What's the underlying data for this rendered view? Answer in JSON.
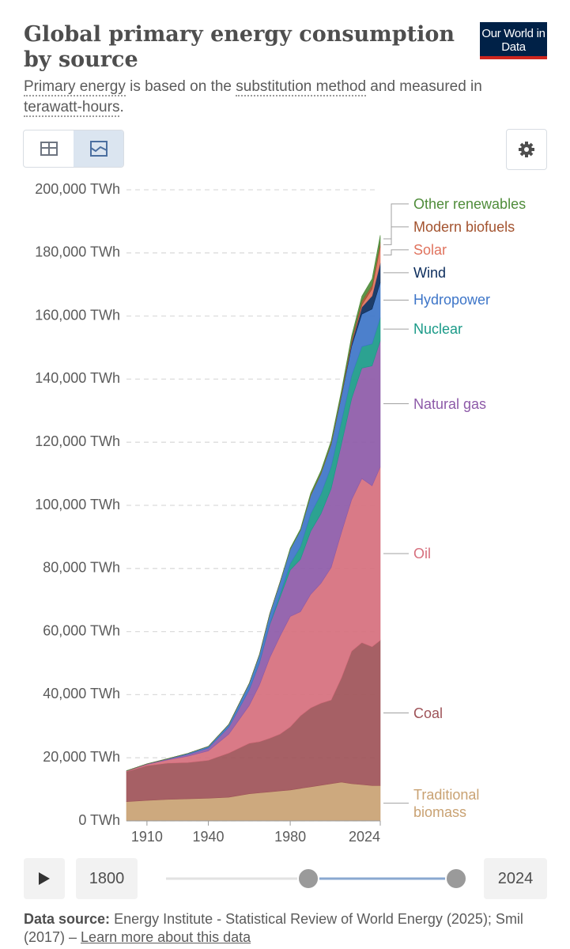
{
  "header": {
    "title": "Global primary energy consumption by source",
    "subtitle": [
      "Primary energy",
      " is based on the ",
      "substitution method",
      " and measured in ",
      "terawatt-hours",
      "."
    ],
    "logo": "Our World in Data"
  },
  "chart_data": {
    "type": "area",
    "stacked": true,
    "x": [
      1900,
      1910,
      1920,
      1930,
      1940,
      1950,
      1960,
      1965,
      1970,
      1975,
      1980,
      1985,
      1990,
      1995,
      2000,
      2005,
      2010,
      2015,
      2020,
      2024
    ],
    "xlim": [
      1900,
      2024
    ],
    "xticks": [
      1910,
      1940,
      1980,
      2024
    ],
    "ylim": [
      0,
      200000
    ],
    "yticks": [
      {
        "value": 0,
        "label": "0 TWh"
      },
      {
        "value": 20000,
        "label": "20,000 TWh"
      },
      {
        "value": 40000,
        "label": "40,000 TWh"
      },
      {
        "value": 60000,
        "label": "60,000 TWh"
      },
      {
        "value": 80000,
        "label": "80,000 TWh"
      },
      {
        "value": 100000,
        "label": "100,000 TWh"
      },
      {
        "value": 120000,
        "label": "120,000 TWh"
      },
      {
        "value": 140000,
        "label": "140,000 TWh"
      },
      {
        "value": 160000,
        "label": "160,000 TWh"
      },
      {
        "value": 180000,
        "label": "180,000 TWh"
      },
      {
        "value": 200000,
        "label": "200,000 TWh"
      }
    ],
    "grid": true,
    "series": [
      {
        "name": "Traditional biomass",
        "color": "#c9a273",
        "values": [
          6100,
          6500,
          6800,
          7000,
          7200,
          7500,
          8600,
          8900,
          9200,
          9500,
          9800,
          10300,
          10800,
          11300,
          11800,
          12300,
          11800,
          11500,
          11200,
          11200
        ]
      },
      {
        "name": "Coal",
        "color": "#9e5358",
        "values": [
          9500,
          11000,
          11500,
          11500,
          12000,
          14000,
          16000,
          16200,
          17000,
          18000,
          20000,
          23000,
          25000,
          26000,
          26500,
          33000,
          42000,
          45000,
          44000,
          46000
        ]
      },
      {
        "name": "Oil",
        "color": "#d66f7d",
        "values": [
          200,
          400,
          1000,
          2000,
          3000,
          6000,
          12000,
          18000,
          25500,
          31000,
          35000,
          33000,
          36000,
          38000,
          42000,
          46000,
          48000,
          52000,
          51000,
          55000
        ]
      },
      {
        "name": "Natural gas",
        "color": "#8d5aa8",
        "values": [
          70,
          180,
          300,
          600,
          900,
          2200,
          5000,
          7000,
          10500,
          12300,
          14700,
          16600,
          20000,
          22000,
          25000,
          28000,
          32000,
          35000,
          38000,
          40000
        ]
      },
      {
        "name": "Nuclear",
        "color": "#1a9a88",
        "values": [
          0,
          0,
          0,
          0,
          0,
          0,
          0,
          100,
          200,
          1000,
          2000,
          4000,
          5500,
          6300,
          7000,
          7300,
          7300,
          6800,
          7000,
          7300
        ]
      },
      {
        "name": "Hydropower",
        "color": "#3d75c8",
        "values": [
          0,
          0,
          100,
          300,
          500,
          900,
          2000,
          2600,
          3200,
          3800,
          4600,
          5200,
          5800,
          6400,
          7000,
          7900,
          9300,
          10300,
          11000,
          11100
        ]
      },
      {
        "name": "Wind",
        "color": "#0b2c5c",
        "values": [
          0,
          0,
          0,
          0,
          0,
          0,
          0,
          0,
          0,
          0,
          0,
          0,
          0,
          0,
          80,
          280,
          900,
          2200,
          4200,
          6200
        ]
      },
      {
        "name": "Solar",
        "color": "#e0735e",
        "values": [
          0,
          0,
          0,
          0,
          0,
          0,
          0,
          0,
          0,
          0,
          0,
          0,
          0,
          0,
          0,
          10,
          90,
          700,
          2200,
          5100
        ]
      },
      {
        "name": "Modern biofuels",
        "color": "#a3532f",
        "values": [
          0,
          0,
          0,
          0,
          0,
          0,
          0,
          0,
          0,
          0,
          0,
          0,
          200,
          250,
          300,
          450,
          1000,
          1200,
          1200,
          1400
        ]
      },
      {
        "name": "Other renewables",
        "color": "#4f8c3a",
        "values": [
          0,
          0,
          0,
          0,
          0,
          0,
          0,
          0,
          0,
          0,
          300,
          400,
          600,
          700,
          800,
          1000,
          1300,
          1600,
          2000,
          2300
        ]
      }
    ]
  },
  "timeline": {
    "start": "1800",
    "end": "2024"
  },
  "source": {
    "label": "Data source:",
    "text": "Energy Institute - Statistical Review of World Energy (2025); Smil (2017) – ",
    "link": "Learn more about this data"
  }
}
